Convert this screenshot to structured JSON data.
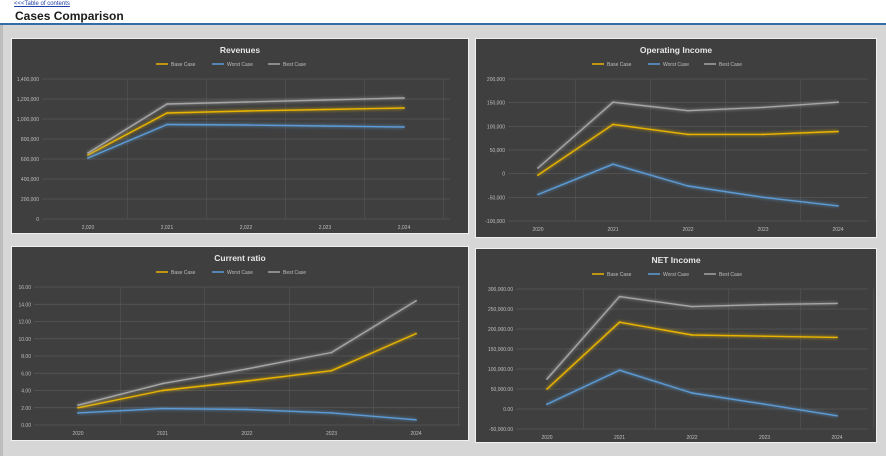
{
  "header": {
    "toc_link": "<<<Table of contents",
    "title": "Cases Comparison"
  },
  "colors": {
    "base_case": "#e8b400",
    "worst_case": "#5b9bd5",
    "best_case": "#a5a5a5",
    "panel_bg": "#3f3f3f",
    "grid": "#5a5a5a",
    "text": "#bfbfbf"
  },
  "chart_data": [
    {
      "type": "line",
      "title": "Revenues",
      "categories": [
        "2,020",
        "2,021",
        "2,022",
        "2,023",
        "2,024"
      ],
      "yticks": [
        "0",
        "200,000",
        "400,000",
        "600,000",
        "800,000",
        "1,000,000",
        "1,200,000",
        "1,400,000"
      ],
      "ylim": [
        0,
        1400000
      ],
      "grid": true,
      "legend": "top-center",
      "series": [
        {
          "name": "Base Case",
          "color": "#e8b400",
          "values": [
            640000,
            1060000,
            1080000,
            1095000,
            1110000
          ]
        },
        {
          "name": "Worst Case",
          "color": "#5b9bd5",
          "values": [
            610000,
            945000,
            940000,
            930000,
            920000
          ]
        },
        {
          "name": "Best Case",
          "color": "#a5a5a5",
          "values": [
            660000,
            1150000,
            1170000,
            1190000,
            1210000
          ]
        }
      ]
    },
    {
      "type": "line",
      "title": "Operating Income",
      "categories": [
        "2020",
        "2021",
        "2022",
        "2023",
        "2024"
      ],
      "yticks": [
        "-100,000",
        "-50,000",
        "0",
        "50,000",
        "100,000",
        "150,000",
        "200,000"
      ],
      "ylim": [
        -100000,
        200000
      ],
      "grid": true,
      "legend": "top-center",
      "series": [
        {
          "name": "Base Case",
          "color": "#e8b400",
          "values": [
            -3000,
            104000,
            83000,
            83000,
            89000
          ]
        },
        {
          "name": "Worst Case",
          "color": "#5b9bd5",
          "values": [
            -44000,
            20000,
            -26000,
            -50000,
            -68000
          ]
        },
        {
          "name": "Best Case",
          "color": "#a5a5a5",
          "values": [
            12000,
            151000,
            133000,
            140000,
            151000
          ]
        }
      ]
    },
    {
      "type": "line",
      "title": "Current ratio",
      "categories": [
        "2020",
        "2021",
        "2022",
        "2023",
        "2024"
      ],
      "yticks": [
        "0.00",
        "2.00",
        "4.00",
        "6.00",
        "8.00",
        "10.00",
        "12.00",
        "14.00",
        "16.00"
      ],
      "ylim": [
        0,
        16
      ],
      "grid": true,
      "legend": "top-center",
      "series": [
        {
          "name": "Base Case",
          "color": "#e8b400",
          "values": [
            2.0,
            4.0,
            5.1,
            6.3,
            10.6
          ]
        },
        {
          "name": "Worst Case",
          "color": "#5b9bd5",
          "values": [
            1.4,
            1.9,
            1.8,
            1.4,
            0.6
          ]
        },
        {
          "name": "Best Case",
          "color": "#a5a5a5",
          "values": [
            2.3,
            4.8,
            6.5,
            8.4,
            14.4
          ]
        }
      ]
    },
    {
      "type": "line",
      "title": "NET Income",
      "categories": [
        "2020",
        "2021",
        "2022",
        "2023",
        "2024"
      ],
      "yticks": [
        "-50,000.00",
        "0.00",
        "50,000.00",
        "100,000.00",
        "150,000.00",
        "200,000.00",
        "250,000.00",
        "300,000.00"
      ],
      "ylim": [
        -50000,
        300000
      ],
      "grid": true,
      "legend": "top-center",
      "series": [
        {
          "name": "Base Case",
          "color": "#e8b400",
          "values": [
            50000,
            217000,
            185000,
            182000,
            179000
          ]
        },
        {
          "name": "Worst Case",
          "color": "#5b9bd5",
          "values": [
            12000,
            97000,
            40000,
            12000,
            -17000
          ]
        },
        {
          "name": "Best Case",
          "color": "#a5a5a5",
          "values": [
            75000,
            281000,
            256000,
            261000,
            264000
          ]
        }
      ]
    }
  ]
}
